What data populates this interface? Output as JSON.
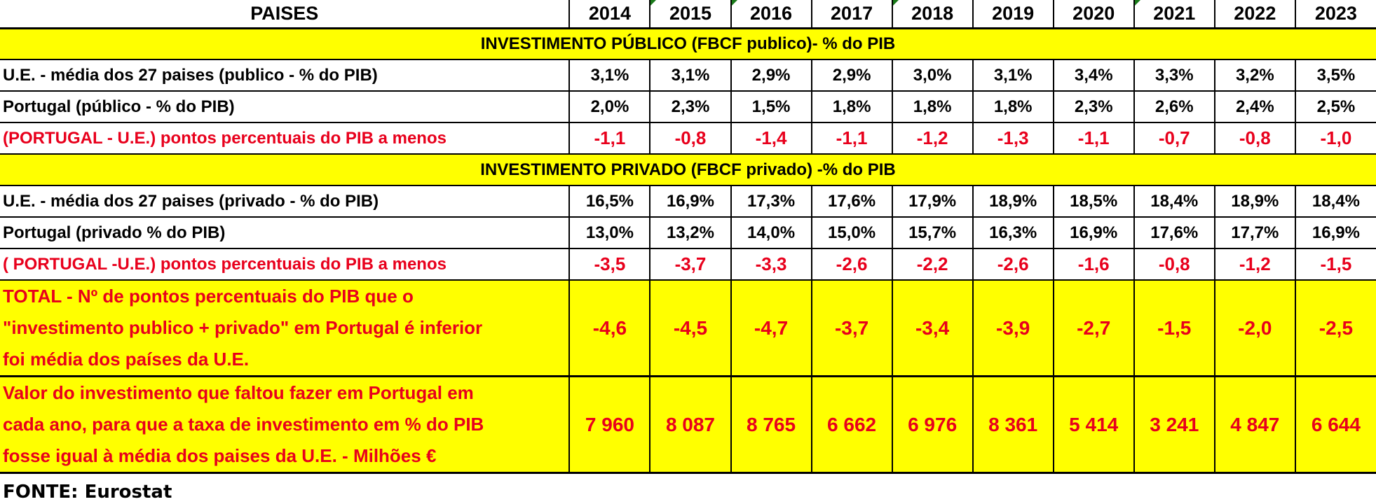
{
  "header": {
    "label": "PAISES",
    "years": [
      "2014",
      "2015",
      "2016",
      "2017",
      "2018",
      "2019",
      "2020",
      "2021",
      "2022",
      "2023"
    ]
  },
  "section_publico": {
    "title": "INVESTIMENTO PÚBLICO  (FBCF publico)-  % do PIB"
  },
  "rows_publico": [
    {
      "label": "U.E. -  média dos 27 paises (publico - % do PIB)",
      "values": [
        "3,1%",
        "3,1%",
        "2,9%",
        "2,9%",
        "3,0%",
        "3,1%",
        "3,4%",
        "3,3%",
        "3,2%",
        "3,5%"
      ]
    },
    {
      "label": "Portugal (público - % do PIB)",
      "values": [
        "2,0%",
        "2,3%",
        "1,5%",
        "1,8%",
        "1,8%",
        "1,8%",
        "2,3%",
        "2,6%",
        "2,4%",
        "2,5%"
      ]
    },
    {
      "label": "(PORTUGAL - U.E.) pontos percentuais do PIB a menos",
      "values": [
        "-1,1",
        "-0,8",
        "-1,4",
        "-1,1",
        "-1,2",
        "-1,3",
        "-1,1",
        "-0,7",
        "-0,8",
        "-1,0"
      ]
    }
  ],
  "section_privado": {
    "title": "INVESTIMENTO PRIVADO  (FBCF privado)  -% do PIB"
  },
  "rows_privado": [
    {
      "label": "U.E. -  média dos 27 paises (privado  - % do PIB)",
      "values": [
        "16,5%",
        "16,9%",
        "17,3%",
        "17,6%",
        "17,9%",
        "18,9%",
        "18,5%",
        "18,4%",
        "18,9%",
        "18,4%"
      ]
    },
    {
      "label": "Portugal (privado % do PIB)",
      "values": [
        "13,0%",
        "13,2%",
        "14,0%",
        "15,0%",
        "15,7%",
        "16,3%",
        "16,9%",
        "17,6%",
        "17,7%",
        "16,9%"
      ]
    },
    {
      "label": " ( PORTUGAL -U.E.) pontos percentuais do PIB a menos",
      "values": [
        "-3,5",
        "-3,7",
        "-3,3",
        "-2,6",
        "-2,2",
        "-2,6",
        "-1,6",
        "-0,8",
        "-1,2",
        "-1,5"
      ]
    }
  ],
  "total_pontos": {
    "label_lines": [
      "TOTAL - Nº de pontos percentuais do PIB que o",
      "\"investimento publico + privado\"  em Portugal é inferior",
      "foi média dos países da U.E."
    ],
    "values": [
      "-4,6",
      "-4,5",
      "-4,7",
      "-3,7",
      "-3,4",
      "-3,9",
      "-2,7",
      "-1,5",
      "-2,0",
      "-2,5"
    ]
  },
  "total_valor": {
    "label_lines": [
      "Valor do investimento que faltou fazer em Portugal  em",
      "cada ano, para que a  taxa de investimento em % do PIB",
      "fosse igual à média dos paises da U.E. - Milhões €"
    ],
    "values": [
      "7 960",
      "8 087",
      "8 765",
      "6 662",
      "6 976",
      "8 361",
      "5 414",
      "3 241",
      "4 847",
      "6 644"
    ]
  },
  "source": "FONTE: Eurostat",
  "colors": {
    "highlight": "#ffff00",
    "negative_text": "#e8001c",
    "corner_marker": "#1a7a1a"
  }
}
